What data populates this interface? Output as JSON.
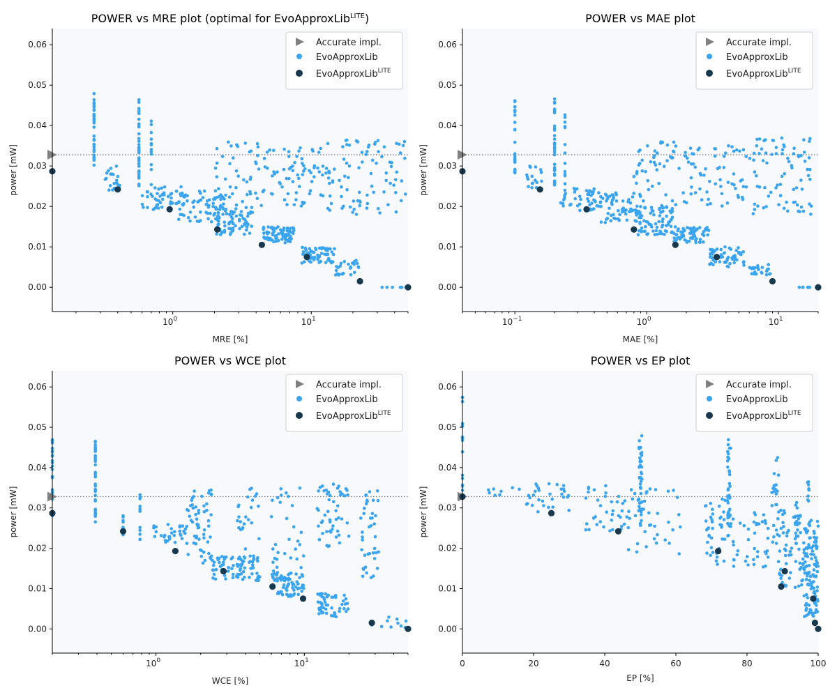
{
  "chart_data": [
    {
      "type": "scatter",
      "title": "POWER vs MRE plot (optimal for EvoApproxLib",
      "title_sup": "LITE",
      "title_tail": ")",
      "xlabel": "MRE [%]",
      "ylabel": "power [mW]",
      "xscale": "log",
      "xlim": [
        0.135,
        50
      ],
      "ylim": [
        -0.006,
        0.064
      ],
      "xticks": [
        {
          "v": 1,
          "base": "10",
          "exp": "0"
        },
        {
          "v": 10,
          "base": "10",
          "exp": "1"
        }
      ],
      "yticks": [
        "0.00",
        "0.01",
        "0.02",
        "0.03",
        "0.04",
        "0.05",
        "0.06"
      ],
      "reference_y": 0.0328,
      "accurate": [
        [
          0.135,
          0.0328
        ]
      ],
      "lite": [
        [
          0.135,
          0.0287
        ],
        [
          0.4,
          0.0242
        ],
        [
          0.95,
          0.0193
        ],
        [
          2.1,
          0.0143
        ],
        [
          4.4,
          0.0105
        ],
        [
          9.3,
          0.0075
        ],
        [
          22.5,
          0.0015
        ],
        [
          50,
          0.0
        ]
      ],
      "clusters": [
        {
          "x0": 0.27,
          "x1": 0.27,
          "y0": 0.028,
          "y1": 0.048,
          "n": 30
        },
        {
          "x0": 0.57,
          "x1": 0.57,
          "y0": 0.025,
          "y1": 0.047,
          "n": 35
        },
        {
          "x0": 0.7,
          "x1": 0.7,
          "y0": 0.025,
          "y1": 0.044,
          "n": 12
        },
        {
          "x0": 0.3,
          "x1": 0.42,
          "y0": 0.024,
          "y1": 0.03,
          "n": 20
        },
        {
          "x0": 0.6,
          "x1": 1.2,
          "y0": 0.019,
          "y1": 0.025,
          "n": 50
        },
        {
          "x0": 1.1,
          "x1": 2.3,
          "y0": 0.016,
          "y1": 0.024,
          "n": 60
        },
        {
          "x0": 2.0,
          "x1": 3.8,
          "y0": 0.013,
          "y1": 0.02,
          "n": 80
        },
        {
          "x0": 4.5,
          "x1": 7.5,
          "y0": 0.011,
          "y1": 0.015,
          "n": 70
        },
        {
          "x0": 8.5,
          "x1": 15,
          "y0": 0.006,
          "y1": 0.01,
          "n": 60
        },
        {
          "x0": 15,
          "x1": 23,
          "y0": 0.003,
          "y1": 0.007,
          "n": 25
        },
        {
          "x0": 2.0,
          "x1": 5.0,
          "y0": 0.02,
          "y1": 0.036,
          "n": 50
        },
        {
          "x0": 5.0,
          "x1": 12,
          "y0": 0.02,
          "y1": 0.035,
          "n": 60
        },
        {
          "x0": 12,
          "x1": 50,
          "y0": 0.018,
          "y1": 0.037,
          "n": 90
        },
        {
          "x0": 32,
          "x1": 50,
          "y0": 0.0,
          "y1": 0.0,
          "n": 8
        }
      ]
    },
    {
      "type": "scatter",
      "title": "POWER vs MAE plot",
      "title_sup": "",
      "title_tail": "",
      "xlabel": "MAE [%]",
      "ylabel": "power [mW]",
      "xscale": "log",
      "xlim": [
        0.04,
        20
      ],
      "ylim": [
        -0.006,
        0.064
      ],
      "xticks": [
        {
          "v": 0.1,
          "base": "10",
          "exp": "−1"
        },
        {
          "v": 1,
          "base": "10",
          "exp": "0"
        },
        {
          "v": 10,
          "base": "10",
          "exp": "1"
        }
      ],
      "yticks": [
        "0.00",
        "0.01",
        "0.02",
        "0.03",
        "0.04",
        "0.05",
        "0.06"
      ],
      "reference_y": 0.0328,
      "accurate": [
        [
          0.04,
          0.0328
        ]
      ],
      "lite": [
        [
          0.04,
          0.0287
        ],
        [
          0.155,
          0.0242
        ],
        [
          0.35,
          0.0193
        ],
        [
          0.8,
          0.0143
        ],
        [
          1.65,
          0.0105
        ],
        [
          3.4,
          0.0075
        ],
        [
          9.0,
          0.0015
        ],
        [
          20,
          0.0
        ]
      ],
      "clusters": [
        {
          "x0": 0.1,
          "x1": 0.1,
          "y0": 0.028,
          "y1": 0.048,
          "n": 30
        },
        {
          "x0": 0.2,
          "x1": 0.2,
          "y0": 0.025,
          "y1": 0.047,
          "n": 35
        },
        {
          "x0": 0.24,
          "x1": 0.24,
          "y0": 0.025,
          "y1": 0.044,
          "n": 12
        },
        {
          "x0": 0.12,
          "x1": 0.16,
          "y0": 0.024,
          "y1": 0.03,
          "n": 20
        },
        {
          "x0": 0.22,
          "x1": 0.45,
          "y0": 0.019,
          "y1": 0.025,
          "n": 50
        },
        {
          "x0": 0.45,
          "x1": 0.9,
          "y0": 0.016,
          "y1": 0.024,
          "n": 60
        },
        {
          "x0": 0.8,
          "x1": 1.6,
          "y0": 0.013,
          "y1": 0.02,
          "n": 80
        },
        {
          "x0": 1.6,
          "x1": 3.0,
          "y0": 0.011,
          "y1": 0.015,
          "n": 70
        },
        {
          "x0": 3.0,
          "x1": 5.5,
          "y0": 0.005,
          "y1": 0.01,
          "n": 60
        },
        {
          "x0": 6.0,
          "x1": 9.0,
          "y0": 0.003,
          "y1": 0.006,
          "n": 25
        },
        {
          "x0": 0.8,
          "x1": 2.0,
          "y0": 0.02,
          "y1": 0.036,
          "n": 50
        },
        {
          "x0": 2.0,
          "x1": 6.0,
          "y0": 0.02,
          "y1": 0.035,
          "n": 60
        },
        {
          "x0": 6.0,
          "x1": 18,
          "y0": 0.018,
          "y1": 0.037,
          "n": 80
        },
        {
          "x0": 14,
          "x1": 20,
          "y0": 0.0,
          "y1": 0.0,
          "n": 8
        }
      ]
    },
    {
      "type": "scatter",
      "title": "POWER vs WCE plot",
      "title_sup": "",
      "title_tail": "",
      "xlabel": "WCE [%]",
      "ylabel": "power [mW]",
      "xscale": "log",
      "xlim": [
        0.2,
        50
      ],
      "ylim": [
        -0.006,
        0.064
      ],
      "xticks": [
        {
          "v": 1,
          "base": "10",
          "exp": "0"
        },
        {
          "v": 10,
          "base": "10",
          "exp": "1"
        }
      ],
      "yticks": [
        "0.00",
        "0.01",
        "0.02",
        "0.03",
        "0.04",
        "0.05",
        "0.06"
      ],
      "reference_y": 0.0328,
      "accurate": [
        [
          0.2,
          0.0328
        ]
      ],
      "lite": [
        [
          0.2,
          0.0287
        ],
        [
          0.6,
          0.0242
        ],
        [
          1.35,
          0.0193
        ],
        [
          2.85,
          0.0143
        ],
        [
          6.1,
          0.0105
        ],
        [
          9.8,
          0.0075
        ],
        [
          28.5,
          0.0015
        ],
        [
          50,
          0.0
        ]
      ],
      "clusters": [
        {
          "x0": 0.2,
          "x1": 0.2,
          "y0": 0.028,
          "y1": 0.047,
          "n": 25
        },
        {
          "x0": 0.39,
          "x1": 0.39,
          "y0": 0.026,
          "y1": 0.047,
          "n": 35
        },
        {
          "x0": 0.6,
          "x1": 0.6,
          "y0": 0.023,
          "y1": 0.029,
          "n": 12
        },
        {
          "x0": 0.78,
          "x1": 0.78,
          "y0": 0.021,
          "y1": 0.034,
          "n": 12
        },
        {
          "x0": 0.95,
          "x1": 1.6,
          "y0": 0.021,
          "y1": 0.026,
          "n": 30
        },
        {
          "x0": 1.6,
          "x1": 2.4,
          "y0": 0.016,
          "y1": 0.035,
          "n": 60
        },
        {
          "x0": 2.4,
          "x1": 5.0,
          "y0": 0.012,
          "y1": 0.018,
          "n": 80
        },
        {
          "x0": 3.5,
          "x1": 5.0,
          "y0": 0.018,
          "y1": 0.035,
          "n": 25
        },
        {
          "x0": 6.0,
          "x1": 10,
          "y0": 0.008,
          "y1": 0.014,
          "n": 70
        },
        {
          "x0": 6.0,
          "x1": 10,
          "y0": 0.014,
          "y1": 0.035,
          "n": 30
        },
        {
          "x0": 12,
          "x1": 20,
          "y0": 0.003,
          "y1": 0.009,
          "n": 50
        },
        {
          "x0": 12,
          "x1": 20,
          "y0": 0.02,
          "y1": 0.036,
          "n": 50
        },
        {
          "x0": 24,
          "x1": 32,
          "y0": 0.012,
          "y1": 0.035,
          "n": 40
        },
        {
          "x0": 25,
          "x1": 50,
          "y0": 0.0,
          "y1": 0.003,
          "n": 10
        }
      ]
    },
    {
      "type": "scatter",
      "title": "POWER vs EP plot",
      "title_sup": "",
      "title_tail": "",
      "xlabel": "EP [%]",
      "ylabel": "power [mW]",
      "xscale": "linear",
      "xlim": [
        0,
        100
      ],
      "ylim": [
        -0.006,
        0.064
      ],
      "xticks": [
        {
          "v": 0,
          "label": "0"
        },
        {
          "v": 20,
          "label": "20"
        },
        {
          "v": 40,
          "label": "40"
        },
        {
          "v": 60,
          "label": "60"
        },
        {
          "v": 80,
          "label": "80"
        },
        {
          "v": 100,
          "label": "100"
        }
      ],
      "yticks": [
        "0.00",
        "0.01",
        "0.02",
        "0.03",
        "0.04",
        "0.05",
        "0.06"
      ],
      "reference_y": 0.0328,
      "accurate": [
        [
          0,
          0.0328
        ]
      ],
      "lite": [
        [
          0,
          0.0328
        ],
        [
          25,
          0.0287
        ],
        [
          43.8,
          0.0242
        ],
        [
          71.9,
          0.0193
        ],
        [
          90.6,
          0.0143
        ],
        [
          89.6,
          0.0105
        ],
        [
          98.6,
          0.0075
        ],
        [
          99.1,
          0.0015
        ],
        [
          100,
          0.0
        ]
      ],
      "clusters": [
        {
          "x0": 0,
          "x1": 0,
          "y0": 0.033,
          "y1": 0.058,
          "n": 20
        },
        {
          "x0": 6,
          "x1": 16,
          "y0": 0.033,
          "y1": 0.035,
          "n": 8
        },
        {
          "x0": 18,
          "x1": 30,
          "y0": 0.029,
          "y1": 0.036,
          "n": 30
        },
        {
          "x0": 34,
          "x1": 46,
          "y0": 0.024,
          "y1": 0.036,
          "n": 35
        },
        {
          "x0": 49.5,
          "x1": 50.5,
          "y0": 0.025,
          "y1": 0.048,
          "n": 40
        },
        {
          "x0": 46,
          "x1": 62,
          "y0": 0.018,
          "y1": 0.035,
          "n": 40
        },
        {
          "x0": 68,
          "x1": 74,
          "y0": 0.016,
          "y1": 0.033,
          "n": 40
        },
        {
          "x0": 74.5,
          "x1": 75.5,
          "y0": 0.023,
          "y1": 0.047,
          "n": 40
        },
        {
          "x0": 76,
          "x1": 86,
          "y0": 0.015,
          "y1": 0.029,
          "n": 40
        },
        {
          "x0": 87,
          "x1": 89,
          "y0": 0.015,
          "y1": 0.044,
          "n": 25
        },
        {
          "x0": 89,
          "x1": 96,
          "y0": 0.01,
          "y1": 0.03,
          "n": 60
        },
        {
          "x0": 96,
          "x1": 100,
          "y0": 0.003,
          "y1": 0.027,
          "n": 120
        },
        {
          "x0": 93.5,
          "x1": 94.5,
          "y0": 0.02,
          "y1": 0.033,
          "n": 15
        },
        {
          "x0": 97,
          "x1": 97.5,
          "y0": 0.03,
          "y1": 0.037,
          "n": 8
        }
      ]
    }
  ],
  "legend": {
    "accurate": "Accurate impl.",
    "evo": "EvoApproxLib",
    "lite_base": "EvoApproxLib",
    "lite_sup": "LITE"
  },
  "colors": {
    "evo": "#3aa4ee",
    "lite": "#17384d",
    "accurate": "#808080",
    "refline": "#7a7a7a",
    "plot_bg": "#f7f9fb"
  }
}
